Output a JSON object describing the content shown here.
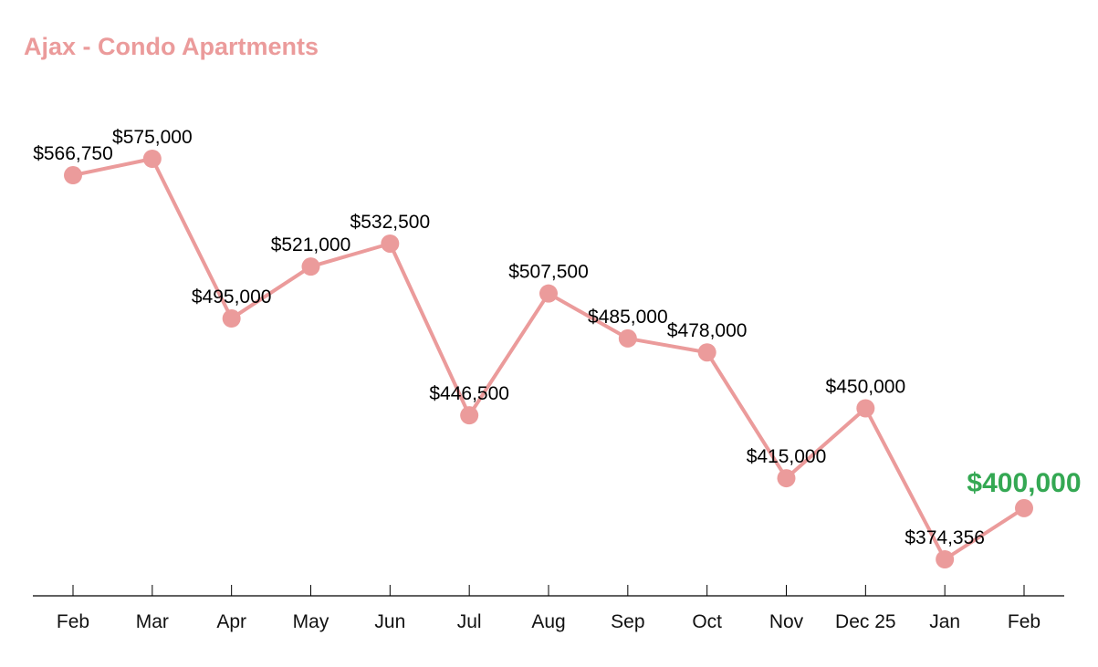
{
  "chart_data": {
    "type": "line",
    "title": "Ajax - Condo Apartments",
    "xlabel": "",
    "ylabel": "",
    "categories": [
      "Feb",
      "Mar",
      "Apr",
      "May",
      "Jun",
      "Jul",
      "Aug",
      "Sep",
      "Oct",
      "Nov",
      "Dec 25",
      "Jan",
      "Feb"
    ],
    "values": [
      566750,
      575000,
      495000,
      521000,
      532500,
      446500,
      507500,
      485000,
      478000,
      415000,
      450000,
      374356,
      400000
    ],
    "labels": [
      "$566,750",
      "$575,000",
      "$495,000",
      "$521,000",
      "$532,500",
      "$446,500",
      "$507,500",
      "$485,000",
      "$478,000",
      "$415,000",
      "$450,000",
      "$374,356",
      "$400,000"
    ],
    "highlight_index": 12,
    "grid": false,
    "colors": {
      "line": "#eb9b9b",
      "marker": "#eb9b9b",
      "highlight": "#34a853",
      "title": "#eb9b9b",
      "axis": "#000000"
    }
  }
}
